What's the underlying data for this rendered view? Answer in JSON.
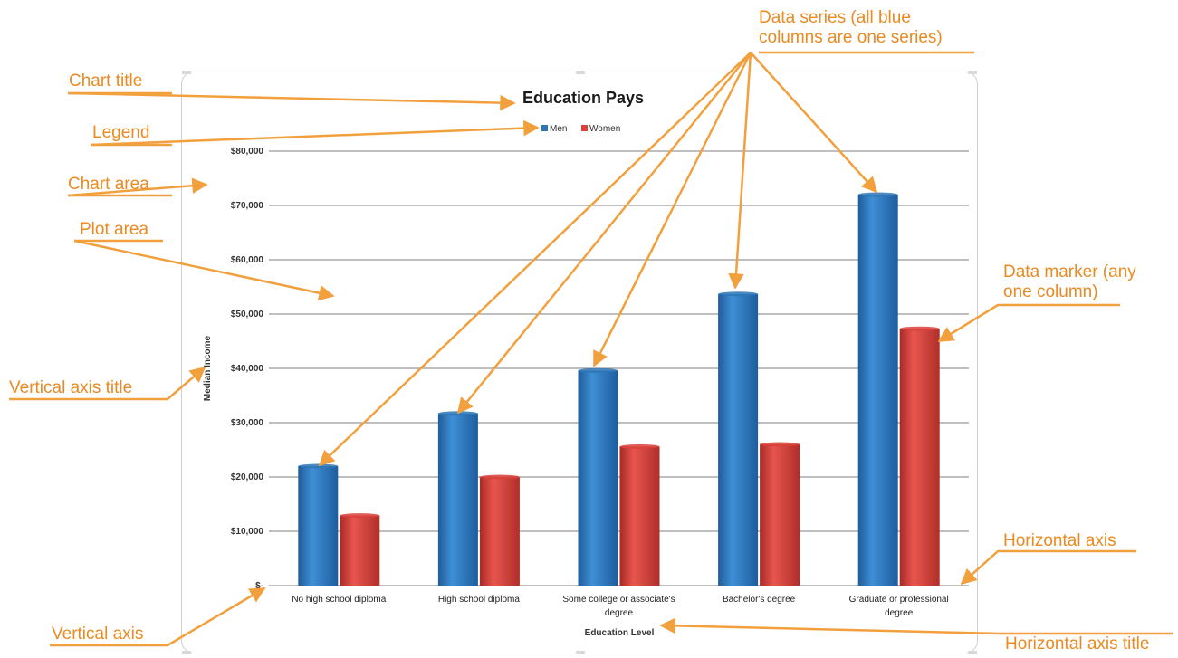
{
  "callouts": {
    "chart_title": "Chart title",
    "legend": "Legend",
    "chart_area": "Chart area",
    "plot_area": "Plot area",
    "vertical_axis_title": "Vertical axis title",
    "vertical_axis": "Vertical axis",
    "data_series": "Data series (all blue\ncolumns are one series)",
    "data_marker": "Data marker (any\none column)",
    "horizontal_axis": "Horizontal axis",
    "horizontal_axis_title": "Horizontal axis title"
  },
  "colors": {
    "callout": "#e98a22",
    "men": "#2e75b6",
    "women": "#d9413b",
    "gridline": "#7f7f7f"
  },
  "chart_data": {
    "type": "bar",
    "title": "Education Pays",
    "xlabel": "Education Level",
    "ylabel": "Median Income",
    "categories": [
      "No high school diploma",
      "High school diploma",
      "Some college or associate's degree",
      "Bachelor's degree",
      "Graduate or professional degree"
    ],
    "series": [
      {
        "name": "Men",
        "values": [
          22000,
          31700,
          39600,
          53700,
          72000
        ]
      },
      {
        "name": "Women",
        "values": [
          12900,
          20000,
          25600,
          26000,
          47300
        ]
      }
    ],
    "ylim": [
      0,
      80000
    ],
    "ytick_labels": [
      "$-",
      "$10,000",
      "$20,000",
      "$30,000",
      "$40,000",
      "$50,000",
      "$60,000",
      "$70,000",
      "$80,000"
    ],
    "grid": true,
    "legend_position": "top"
  }
}
